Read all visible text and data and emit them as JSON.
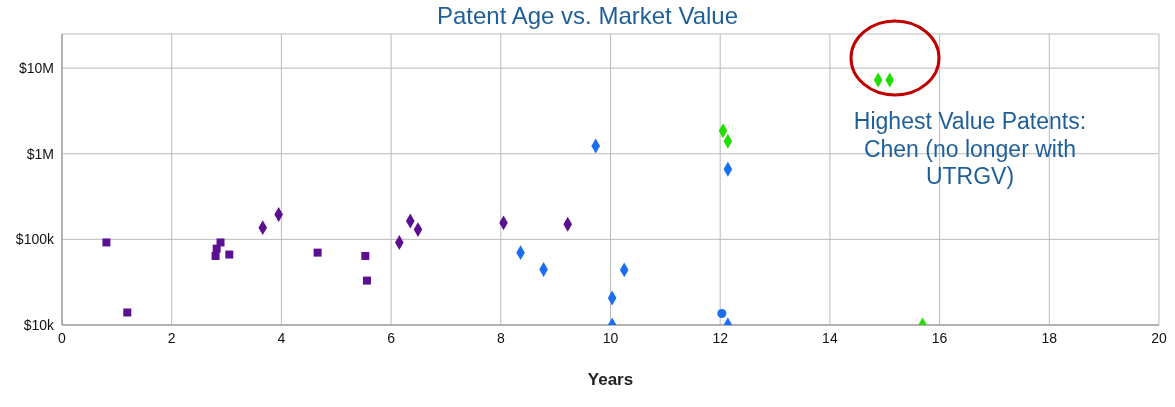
{
  "chart_data": {
    "type": "scatter",
    "title": "Patent Age vs. Market Value",
    "xlabel": "Years",
    "log": "y",
    "grid": true,
    "xlim": [
      0,
      20
    ],
    "xticks": [
      0,
      2,
      4,
      6,
      8,
      10,
      12,
      14,
      16,
      18,
      20
    ],
    "ylim": [
      10000,
      25000000
    ],
    "yticks": [
      {
        "value": 10000,
        "label": "$10k"
      },
      {
        "value": 100000,
        "label": "$100k"
      },
      {
        "value": 1000000,
        "label": "$1M"
      },
      {
        "value": 10000000,
        "label": "$10M"
      }
    ],
    "annotations": [
      "Highest Value Patents: Chen (no longer with UTRGV)"
    ],
    "series": [
      {
        "color": "#5b0f91",
        "marker": "square",
        "x": [
          0.81,
          1.19,
          2.8,
          2.82,
          2.89,
          3.05,
          4.66,
          5.53,
          5.56
        ],
        "values": [
          92000,
          14000,
          64000,
          78000,
          92000,
          66500,
          70000,
          64000,
          33000
        ]
      },
      {
        "color": "#5b0f91",
        "marker": "diamond",
        "x": [
          3.66,
          3.95,
          6.15,
          6.35,
          6.49,
          8.05,
          9.22
        ],
        "values": [
          137000,
          195000,
          92000,
          164000,
          130000,
          156000,
          150000
        ]
      },
      {
        "color": "#1a6ef0",
        "marker": "diamond",
        "x": [
          8.36,
          8.78,
          9.73,
          10.25,
          10.03,
          10.03,
          12.14,
          12.14
        ],
        "values": [
          70000,
          44500,
          1230000,
          44000,
          20700,
          10000,
          658000,
          10000
        ]
      },
      {
        "color": "#1a6ef0",
        "marker": "circle",
        "x": [
          12.03
        ],
        "values": [
          13600
        ]
      },
      {
        "color": "#22dd00",
        "marker": "diamond",
        "x": [
          12.05,
          12.14,
          14.88,
          15.09,
          15.69
        ],
        "values": [
          1850000,
          1400000,
          7250000,
          7250000,
          10000
        ]
      }
    ]
  }
}
